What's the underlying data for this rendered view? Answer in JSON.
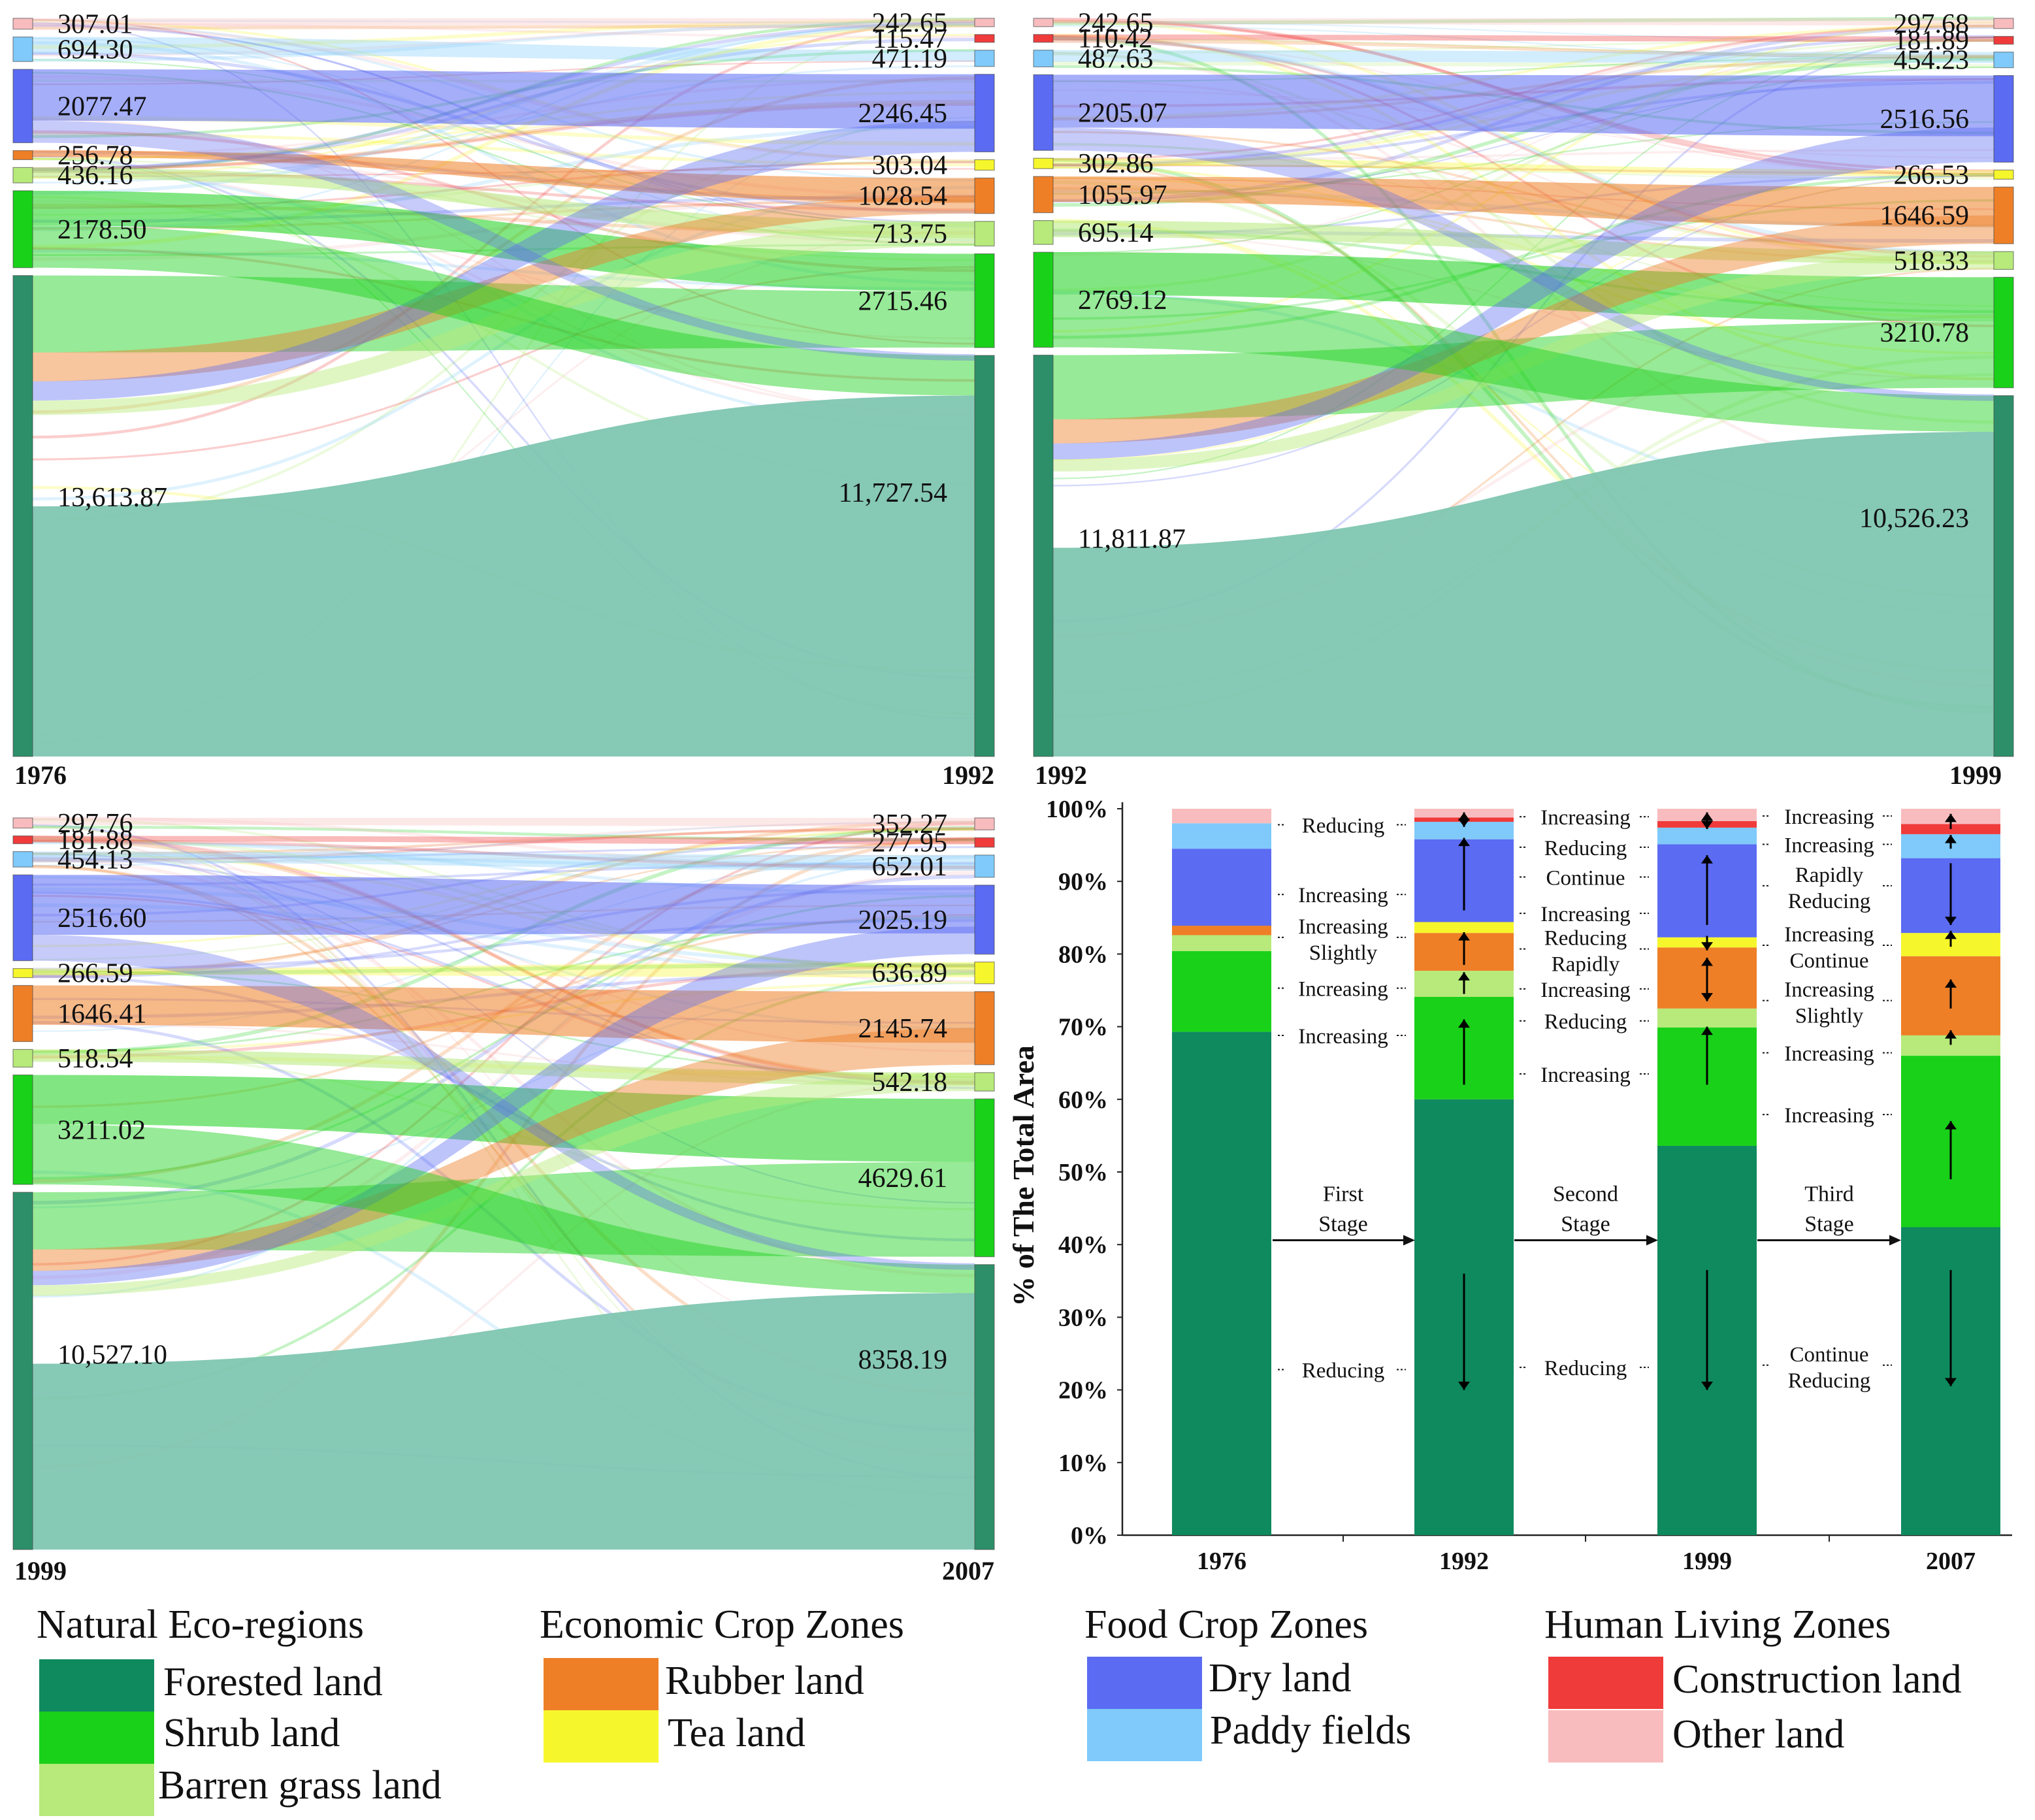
{
  "colors": {
    "forested": "#0f8a5f",
    "shrub": "#19d119",
    "barren": "#b7ea7a",
    "rubber": "#ee7f27",
    "tea": "#f6f62c",
    "dry": "#5b6bf2",
    "paddy": "#7fcafa",
    "construction": "#f03b3b",
    "other": "#f8bcbe",
    "forested_dark": "#2d8f6a",
    "forested_flow": "#7fc6b0"
  },
  "sankeys": [
    {
      "id": "s1",
      "left_year": "1976",
      "right_year": "1992",
      "left_labels": [
        "307.01",
        "694.30",
        "2077.47",
        "256.78",
        "436.16",
        "2178.50",
        "13,613.87"
      ],
      "right_labels": [
        "242.65",
        "115.47",
        "471.19",
        "2246.45",
        "303.04",
        "1028.54",
        "713.75",
        "2715.46",
        "11,727.54"
      ],
      "left_values": [
        307.01,
        694.3,
        2077.47,
        256.78,
        436.16,
        2178.5,
        13613.87
      ],
      "right_values": [
        242.65,
        115.47,
        471.19,
        2246.45,
        303.04,
        1028.54,
        713.75,
        2715.46,
        11727.54
      ],
      "left_cats": [
        "other",
        "paddy",
        "dry",
        "rubber",
        "barren",
        "shrub",
        "forested"
      ],
      "right_cats": [
        "other",
        "construction",
        "paddy",
        "dry",
        "tea",
        "rubber",
        "barren",
        "shrub",
        "forested"
      ]
    },
    {
      "id": "s2",
      "left_year": "1992",
      "right_year": "1999",
      "left_labels": [
        "242.65",
        "110.42",
        "487.63",
        "2205.07",
        "302.86",
        "1055.97",
        "695.14",
        "2769.12",
        "11,811.87"
      ],
      "right_labels": [
        "297.68",
        "181.89",
        "454.23",
        "2516.56",
        "266.53",
        "1646.59",
        "518.33",
        "3210.78",
        "10,526.23"
      ],
      "left_values": [
        242.65,
        110.42,
        487.63,
        2205.07,
        302.86,
        1055.97,
        695.14,
        2769.12,
        11811.87
      ],
      "right_values": [
        297.68,
        181.89,
        454.23,
        2516.56,
        266.53,
        1646.59,
        518.33,
        3210.78,
        10526.23
      ],
      "left_cats": [
        "other",
        "construction",
        "paddy",
        "dry",
        "tea",
        "rubber",
        "barren",
        "shrub",
        "forested"
      ],
      "right_cats": [
        "other",
        "construction",
        "paddy",
        "dry",
        "tea",
        "rubber",
        "barren",
        "shrub",
        "forested"
      ]
    },
    {
      "id": "s3",
      "left_year": "1999",
      "right_year": "2007",
      "left_labels": [
        "297.76",
        "181.88",
        "454.13",
        "2516.60",
        "266.59",
        "1646.41",
        "518.54",
        "3211.02",
        "10,527.10"
      ],
      "right_labels": [
        "352.27",
        "277.95",
        "652.01",
        "2025.19",
        "636.89",
        "2145.74",
        "542.18",
        "4629.61",
        "8358.19"
      ],
      "left_values": [
        297.76,
        181.88,
        454.13,
        2516.6,
        266.59,
        1646.41,
        518.54,
        3211.02,
        10527.1
      ],
      "right_values": [
        352.27,
        277.95,
        652.01,
        2025.19,
        636.89,
        2145.74,
        542.18,
        4629.61,
        8358.19
      ],
      "left_cats": [
        "other",
        "construction",
        "paddy",
        "dry",
        "tea",
        "rubber",
        "barren",
        "shrub",
        "forested"
      ],
      "right_cats": [
        "other",
        "construction",
        "paddy",
        "dry",
        "tea",
        "rubber",
        "barren",
        "shrub",
        "forested"
      ]
    }
  ],
  "chart_data": {
    "type": "bar",
    "stacked": true,
    "ylabel": "% of The Total Area",
    "ylim": [
      0,
      100
    ],
    "yticks": [
      "0%",
      "10%",
      "20%",
      "30%",
      "40%",
      "50%",
      "60%",
      "70%",
      "80%",
      "90%",
      "100%"
    ],
    "categories": [
      "1976",
      "1992",
      "1999",
      "2007"
    ],
    "series": [
      {
        "name": "Forested land",
        "key": "forested",
        "values": [
          69.3,
          60.0,
          53.6,
          42.4
        ]
      },
      {
        "name": "Shrub land",
        "key": "shrub",
        "values": [
          11.1,
          14.1,
          16.3,
          23.6
        ]
      },
      {
        "name": "Barren grass land",
        "key": "barren",
        "values": [
          2.2,
          3.6,
          2.6,
          2.8
        ]
      },
      {
        "name": "Rubber land",
        "key": "rubber",
        "values": [
          1.3,
          5.2,
          8.4,
          10.9
        ]
      },
      {
        "name": "Tea land",
        "key": "tea",
        "values": [
          0.0,
          1.5,
          1.4,
          3.2
        ]
      },
      {
        "name": "Dry land",
        "key": "dry",
        "values": [
          10.6,
          11.4,
          12.8,
          10.3
        ]
      },
      {
        "name": "Paddy fields",
        "key": "paddy",
        "values": [
          3.5,
          2.4,
          2.3,
          3.3
        ]
      },
      {
        "name": "Construction land",
        "key": "construction",
        "values": [
          0.0,
          0.6,
          0.9,
          1.4
        ]
      },
      {
        "name": "Other land",
        "key": "other",
        "values": [
          2.0,
          1.2,
          1.7,
          2.1
        ]
      }
    ],
    "stages": [
      {
        "label": "First Stage",
        "annotations": [
          {
            "text": "Reducing",
            "y": 97.8
          },
          {
            "text": "Increasing",
            "y": 88.2
          },
          {
            "text": "Increasing Slightly",
            "y": 82.3
          },
          {
            "text": "Increasing",
            "y": 75.3
          },
          {
            "text": "Increasing",
            "y": 68.8
          },
          {
            "text": "Reducing",
            "y": 22.8
          }
        ]
      },
      {
        "label": "Second Stage",
        "annotations": [
          {
            "text": "Increasing",
            "y": 98.9
          },
          {
            "text": "Reducing",
            "y": 94.7
          },
          {
            "text": "Continue",
            "y": 90.6
          },
          {
            "text": "Increasing",
            "y": 85.6
          },
          {
            "text": "Reducing Rapidly",
            "y": 80.7
          },
          {
            "text": "Increasing",
            "y": 75.2
          },
          {
            "text": "Reducing",
            "y": 70.8
          },
          {
            "text": "Increasing",
            "y": 63.5
          },
          {
            "text": "Reducing",
            "y": 23.1
          }
        ]
      },
      {
        "label": "Third Stage",
        "annotations": [
          {
            "text": "Increasing",
            "y": 99.0
          },
          {
            "text": "Increasing",
            "y": 95.1
          },
          {
            "text": "Rapidly Reducing",
            "y": 89.4
          },
          {
            "text": "Increasing Continue",
            "y": 81.2
          },
          {
            "text": "Increasing Slightly",
            "y": 73.6
          },
          {
            "text": "Increasing",
            "y": 66.4
          },
          {
            "text": "Increasing",
            "y": 57.9
          },
          {
            "text": "Continue Reducing",
            "y": 23.4
          }
        ]
      }
    ]
  },
  "legend": {
    "groups": [
      {
        "title": "Natural Eco-regions",
        "items": [
          {
            "label": "Forested land",
            "key": "forested"
          },
          {
            "label": "Shrub land",
            "key": "shrub"
          },
          {
            "label": "Barren grass land",
            "key": "barren"
          }
        ]
      },
      {
        "title": "Economic Crop Zones",
        "items": [
          {
            "label": "Rubber land",
            "key": "rubber"
          },
          {
            "label": "Tea land",
            "key": "tea"
          }
        ]
      },
      {
        "title": "Food Crop Zones",
        "items": [
          {
            "label": "Dry land",
            "key": "dry"
          },
          {
            "label": "Paddy fields",
            "key": "paddy"
          }
        ]
      },
      {
        "title": "Human Living Zones",
        "items": [
          {
            "label": "Construction land",
            "key": "construction"
          },
          {
            "label": "Other land",
            "key": "other"
          }
        ]
      }
    ]
  }
}
